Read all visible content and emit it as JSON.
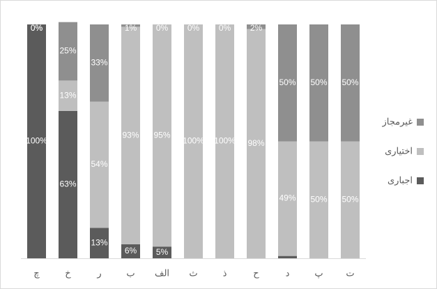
{
  "chart_data": {
    "type": "stacked-bar-100",
    "categories": [
      "چ",
      "خ",
      "ر",
      "ب",
      "الف",
      "ث",
      "ذ",
      "ح",
      "د",
      "پ",
      "ت"
    ],
    "series": [
      {
        "name": "اجباری",
        "color": "#5b5b5b",
        "values": [
          100,
          63,
          13,
          6,
          5,
          0,
          0,
          0,
          1,
          0,
          0
        ],
        "value_labels": [
          "100%",
          "63%",
          "13%",
          "6%",
          "5%",
          "0%",
          "0%",
          "0%",
          "1%",
          "0%",
          "0%"
        ]
      },
      {
        "name": "اختیاری",
        "color": "#bfbfbf",
        "values": [
          0,
          13,
          54,
          93,
          95,
          100,
          100,
          98,
          49,
          50,
          50
        ],
        "value_labels": [
          "0%",
          "13%",
          "54%",
          "93%",
          "95%",
          "100%",
          "100%",
          "98%",
          "49%",
          "50%",
          "50%"
        ]
      },
      {
        "name": "غیرمجاز",
        "color": "#8f8f8f",
        "values": [
          0,
          25,
          33,
          1,
          0,
          0,
          0,
          2,
          50,
          50,
          50
        ],
        "value_labels": [
          "0%",
          "25%",
          "33%",
          "1%",
          "0%",
          "0%",
          "0%",
          "2%",
          "50%",
          "50%",
          "50%"
        ]
      }
    ],
    "ylim": [
      0,
      100
    ],
    "legend": "right"
  }
}
